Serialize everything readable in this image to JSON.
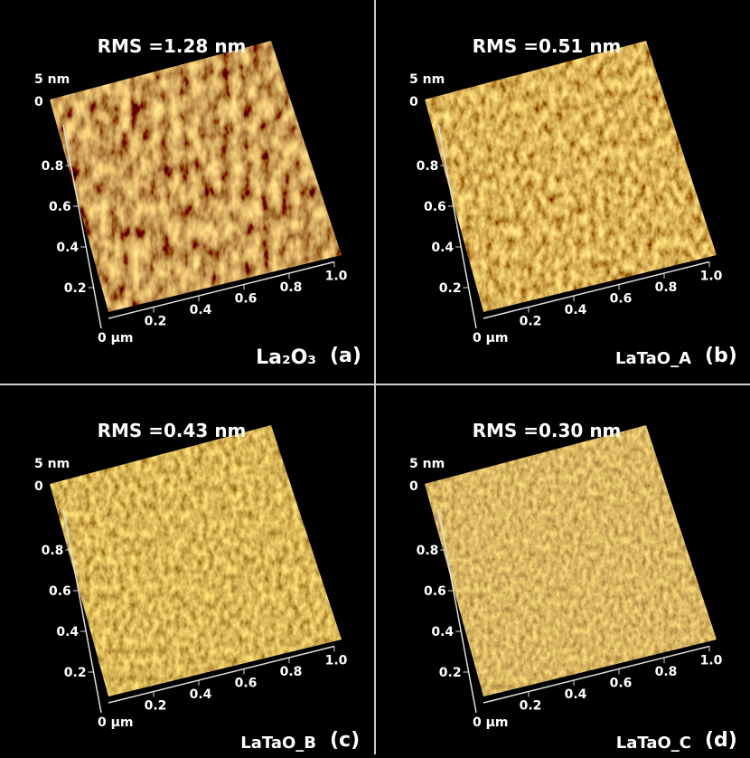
{
  "panels": [
    {
      "rms": "RMS =1.28 nm",
      "z_top": "5 nm",
      "z_bottom": "0",
      "origin": "0 µm",
      "yticks": [
        0.8,
        0.6,
        0.4,
        0.2
      ],
      "xticks": [
        0.2,
        0.4,
        0.6,
        0.8,
        {
          "value": 1,
          "label": "1.0"
        }
      ],
      "sample": "La₂O₃",
      "tag": "(a)"
    },
    {
      "rms": "RMS =0.51 nm",
      "z_top": "5 nm",
      "z_bottom": "0",
      "origin": "0 µm",
      "yticks": [
        0.8,
        0.6,
        0.4,
        0.2
      ],
      "xticks": [
        0.2,
        0.4,
        0.6,
        0.8,
        {
          "value": 1,
          "label": "1.0"
        }
      ],
      "sample": "LaTaO_A",
      "tag": "(b)"
    },
    {
      "rms": "RMS =0.43 nm",
      "z_top": "5 nm",
      "z_bottom": "0",
      "origin": "0 µm",
      "yticks": [
        0.8,
        0.6,
        0.4,
        0.2
      ],
      "xticks": [
        0.2,
        0.4,
        0.6,
        0.8,
        {
          "value": 1,
          "label": "1.0"
        }
      ],
      "sample": "LaTaO_B",
      "tag": "(c)"
    },
    {
      "rms": "RMS =0.30 nm",
      "z_top": "5 nm",
      "z_bottom": "0",
      "origin": "0 µm",
      "yticks": [
        0.8,
        0.6,
        0.4,
        0.2
      ],
      "xticks": [
        0.2,
        0.4,
        0.6,
        0.8,
        {
          "value": 1,
          "label": "1.0"
        }
      ],
      "sample": "LaTaO_C",
      "tag": "(d)"
    }
  ]
}
